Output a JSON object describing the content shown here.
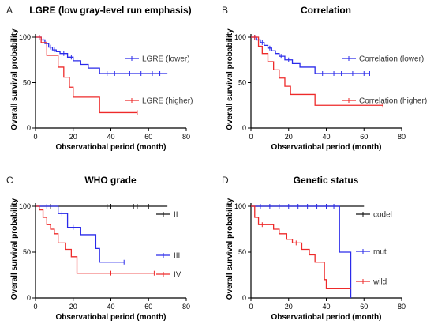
{
  "colors": {
    "blue": "#2a2aea",
    "red": "#ee2a2a",
    "black": "#111111"
  },
  "chart_data": [
    {
      "type": "line",
      "panel": "A",
      "title": "LGRE (low gray-level run emphasis)",
      "xlabel": "Observatiobal period (month)",
      "ylabel": "Overall survival probability",
      "xlim": [
        0,
        80
      ],
      "ylim": [
        0,
        100
      ],
      "xticks": [
        0,
        20,
        40,
        60,
        80
      ],
      "yticks": [
        0,
        50,
        100
      ],
      "legend_position": "right",
      "series": [
        {
          "name": "LGRE (lower)",
          "color": "blue",
          "x": [
            0,
            3,
            5,
            7,
            9,
            11,
            13,
            17,
            20,
            24,
            28,
            34,
            70
          ],
          "y": [
            100,
            97,
            93,
            89,
            86,
            84,
            82,
            78,
            74,
            70,
            66,
            60,
            60
          ],
          "censor_x": [
            2,
            4,
            6,
            8,
            10,
            15,
            19,
            22,
            38,
            42,
            50,
            56,
            62,
            66
          ]
        },
        {
          "name": "LGRE (higher)",
          "color": "red",
          "x": [
            0,
            3,
            6,
            12,
            15,
            18,
            20,
            34,
            54
          ],
          "y": [
            100,
            94,
            80,
            67,
            56,
            45,
            34,
            17,
            17
          ],
          "censor_x": [
            2,
            54
          ]
        }
      ]
    },
    {
      "type": "line",
      "panel": "B",
      "title": "Correlation",
      "xlabel": "Observatiobal period (month)",
      "ylabel": "Overall survival probability",
      "xlim": [
        0,
        80
      ],
      "ylim": [
        0,
        100
      ],
      "xticks": [
        0,
        20,
        40,
        60,
        80
      ],
      "yticks": [
        0,
        50,
        100
      ],
      "legend_position": "right",
      "series": [
        {
          "name": "Correlation (lower)",
          "color": "blue",
          "x": [
            0,
            3,
            5,
            7,
            9,
            11,
            13,
            15,
            18,
            22,
            26,
            34,
            63
          ],
          "y": [
            100,
            97,
            94,
            91,
            88,
            85,
            82,
            79,
            75,
            71,
            67,
            60,
            60
          ],
          "censor_x": [
            2,
            4,
            6,
            10,
            16,
            20,
            38,
            44,
            48,
            54,
            60,
            63
          ]
        },
        {
          "name": "Correlation (higher)",
          "color": "red",
          "x": [
            0,
            4,
            6,
            9,
            12,
            15,
            18,
            21,
            34,
            70
          ],
          "y": [
            100,
            90,
            82,
            73,
            64,
            55,
            46,
            37,
            25,
            25
          ],
          "censor_x": [
            2,
            70
          ]
        }
      ]
    },
    {
      "type": "line",
      "panel": "C",
      "title": "WHO grade",
      "xlabel": "Observatiobal period (month)",
      "ylabel": "Overall survival probability",
      "xlim": [
        0,
        80
      ],
      "ylim": [
        0,
        100
      ],
      "xticks": [
        0,
        20,
        40,
        60,
        80
      ],
      "yticks": [
        0,
        50,
        100
      ],
      "legend_position": "right",
      "series": [
        {
          "name": "II",
          "color": "black",
          "x": [
            0,
            70
          ],
          "y": [
            100,
            100
          ],
          "censor_x": [
            8,
            38,
            40,
            52,
            54,
            60
          ]
        },
        {
          "name": "III",
          "color": "blue",
          "x": [
            0,
            12,
            17,
            24,
            32,
            34,
            47
          ],
          "y": [
            100,
            92,
            77,
            69,
            54,
            39,
            39
          ],
          "censor_x": [
            6,
            14,
            20,
            47
          ]
        },
        {
          "name": "IV",
          "color": "red",
          "x": [
            0,
            2,
            4,
            6,
            8,
            10,
            12,
            16,
            19,
            22,
            63
          ],
          "y": [
            100,
            96,
            88,
            80,
            75,
            70,
            60,
            53,
            45,
            27,
            27
          ],
          "censor_x": [
            40,
            63
          ]
        }
      ]
    },
    {
      "type": "line",
      "panel": "D",
      "title": "Genetic status",
      "xlabel": "Observatiobal period (month)",
      "ylabel": "Overall survival probability",
      "xlim": [
        0,
        80
      ],
      "ylim": [
        0,
        100
      ],
      "xticks": [
        0,
        20,
        40,
        60,
        80
      ],
      "yticks": [
        0,
        50,
        100
      ],
      "legend_position": "right",
      "series": [
        {
          "name": "codel",
          "color": "black",
          "x": [
            0,
            60
          ],
          "y": [
            100,
            100
          ],
          "censor_x": []
        },
        {
          "name": "mut",
          "color": "blue",
          "x": [
            0,
            47,
            53
          ],
          "y": [
            100,
            50,
            0
          ],
          "censor_x": [
            5,
            10,
            15,
            20,
            25,
            30,
            35,
            40,
            44
          ]
        },
        {
          "name": "wild",
          "color": "red",
          "x": [
            0,
            2,
            4,
            12,
            15,
            19,
            22,
            27,
            31,
            34,
            39,
            40,
            53
          ],
          "y": [
            100,
            88,
            80,
            75,
            70,
            64,
            60,
            53,
            47,
            39,
            20,
            10,
            10
          ],
          "censor_x": [
            6,
            24
          ]
        }
      ]
    }
  ]
}
